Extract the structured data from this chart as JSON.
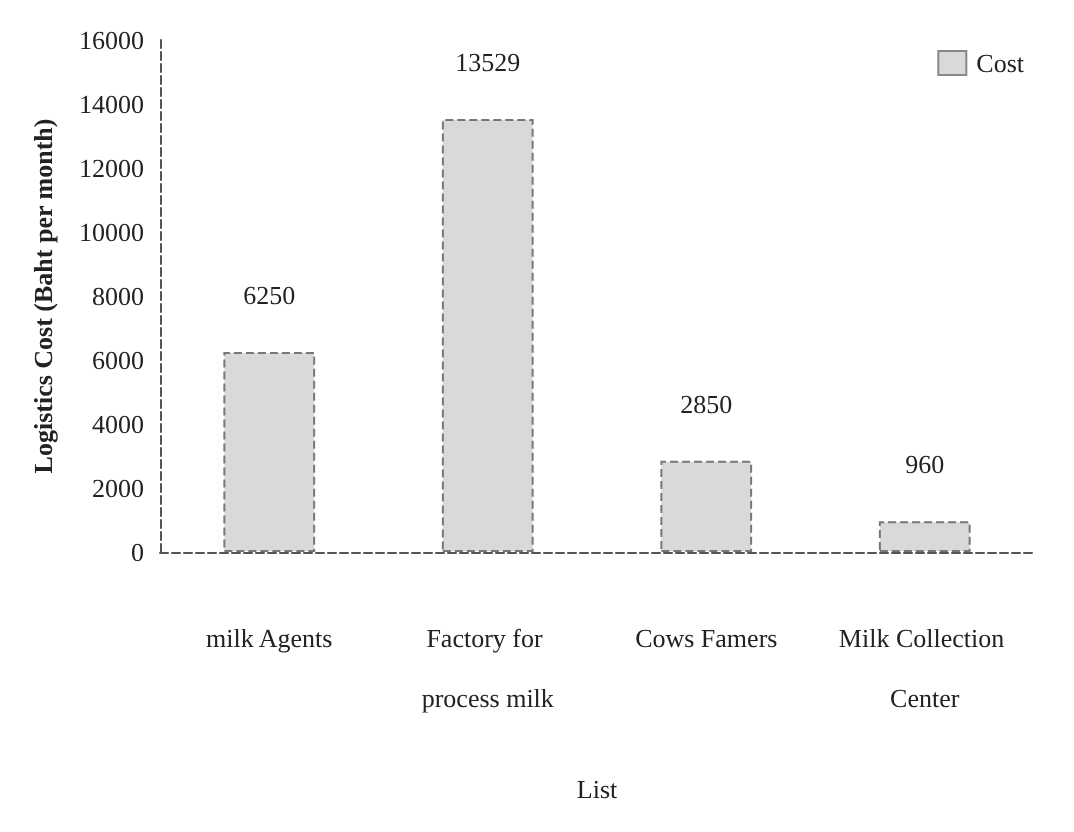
{
  "chart_data": {
    "type": "bar",
    "xlabel": "List",
    "ylabel": "Logistics Cost (Baht per month)",
    "categories": [
      "milk Agents",
      "Factory for process milk",
      "Cows Famers",
      "Milk Collection Center"
    ],
    "series": [
      {
        "name": "Cost",
        "color": "#d9d9d9",
        "values": [
          6250,
          13529,
          2850,
          960
        ]
      }
    ],
    "ylim": [
      0,
      16000
    ],
    "yticks": [
      0,
      2000,
      4000,
      6000,
      8000,
      10000,
      12000,
      14000,
      16000
    ],
    "data_labels": true,
    "grid": false,
    "legend": "top right"
  }
}
